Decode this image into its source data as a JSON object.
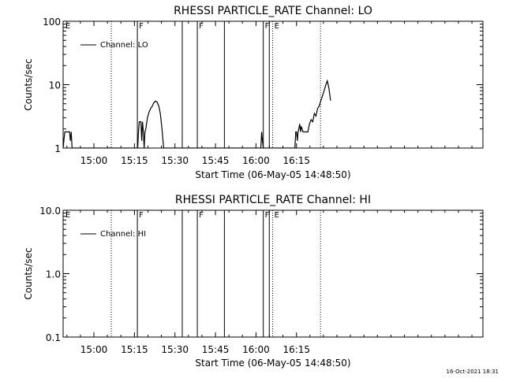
{
  "chart_data": [
    {
      "type": "line",
      "title": "RHESSI PARTICLE_RATE Channel: LO",
      "xlabel": "Start Time (06-May-05 14:48:50)",
      "ylabel": "Counts/sec",
      "y_scale": "log",
      "ylim": [
        1,
        100
      ],
      "xlim_minutes": [
        14.81,
        17.4
      ],
      "x_tick_labels": [
        "15:00",
        "15:15",
        "15:30",
        "15:45",
        "16:00",
        "16:15"
      ],
      "x_tick_minutes": [
        15,
        15.25,
        15.5,
        15.75,
        16,
        16.25
      ],
      "y_tick_labels": [
        "1",
        "10",
        "100"
      ],
      "y_tick_values": [
        1,
        10,
        100
      ],
      "grid": false,
      "legend_position": "top-left",
      "series": [
        {
          "name": "Channel: LO",
          "x_minutes": [
            14.81,
            14.82,
            14.85,
            14.855,
            14.86,
            14.865,
            15.27,
            15.275,
            15.28,
            15.29,
            15.295,
            15.3,
            15.305,
            15.31,
            15.315,
            15.32,
            15.33,
            15.34,
            15.35,
            15.36,
            15.37,
            15.38,
            15.39,
            15.4,
            15.41,
            15.42,
            15.43,
            16.03,
            16.035,
            16.04,
            16.045,
            16.24,
            16.245,
            16.25,
            16.255,
            16.26,
            16.27,
            16.275,
            16.28,
            16.29,
            16.3,
            16.31,
            16.32,
            16.33,
            16.34,
            16.35,
            16.36,
            16.37,
            16.38,
            16.39,
            16.4,
            16.41,
            16.42,
            16.43,
            16.44,
            16.45,
            16.46
          ],
          "y": [
            1,
            1.8,
            1.8,
            1.3,
            1.8,
            1,
            1,
            1.8,
            2.6,
            2.6,
            1.3,
            2.6,
            1.8,
            1,
            1.8,
            2,
            3,
            3.7,
            4.2,
            4.6,
            5.2,
            5.5,
            5.3,
            4.6,
            3.5,
            2,
            1,
            1,
            1.8,
            1.3,
            1,
            1,
            1.8,
            1.8,
            1.3,
            1.8,
            2.4,
            1.8,
            2.2,
            1.8,
            1.8,
            1.8,
            1.8,
            2.4,
            2.8,
            2.6,
            3.5,
            3.2,
            4.2,
            4.6,
            5.6,
            6.6,
            8,
            9.8,
            11.5,
            8.7,
            5.6
          ]
        }
      ],
      "annotations": [
        {
          "label": "E",
          "x_minutes": 14.815,
          "line": "none"
        },
        {
          "label": "",
          "x_minutes": 15.107,
          "line": "dotted"
        },
        {
          "label": "F",
          "x_minutes": 15.268,
          "line": "solid"
        },
        {
          "label": "",
          "x_minutes": 15.545,
          "line": "solid"
        },
        {
          "label": "F",
          "x_minutes": 15.638,
          "line": "solid"
        },
        {
          "label": "",
          "x_minutes": 15.805,
          "line": "solid"
        },
        {
          "label": "F",
          "x_minutes": 16.045,
          "line": "solid"
        },
        {
          "label": "",
          "x_minutes": 16.082,
          "line": "solid"
        },
        {
          "label": "E",
          "x_minutes": 16.103,
          "line": "dotted"
        },
        {
          "label": "",
          "x_minutes": 16.398,
          "line": "dotted"
        }
      ]
    },
    {
      "type": "line",
      "title": "RHESSI PARTICLE_RATE Channel: HI",
      "xlabel": "Start Time (06-May-05 14:48:50)",
      "ylabel": "Counts/sec",
      "y_scale": "log",
      "ylim": [
        0.1,
        10
      ],
      "xlim_minutes": [
        14.81,
        17.4
      ],
      "x_tick_labels": [
        "15:00",
        "15:15",
        "15:30",
        "15:45",
        "16:00",
        "16:15"
      ],
      "x_tick_minutes": [
        15,
        15.25,
        15.5,
        15.75,
        16,
        16.25
      ],
      "y_tick_labels": [
        "0.1",
        "1.0",
        "10.0"
      ],
      "y_tick_values": [
        0.1,
        1,
        10
      ],
      "grid": false,
      "legend_position": "top-left",
      "series": [
        {
          "name": "Channel: HI",
          "x_minutes": [],
          "y": []
        }
      ],
      "annotations": [
        {
          "label": "E",
          "x_minutes": 14.815,
          "line": "none"
        },
        {
          "label": "",
          "x_minutes": 15.107,
          "line": "dotted"
        },
        {
          "label": "F",
          "x_minutes": 15.268,
          "line": "solid"
        },
        {
          "label": "",
          "x_minutes": 15.545,
          "line": "solid"
        },
        {
          "label": "F",
          "x_minutes": 15.638,
          "line": "solid"
        },
        {
          "label": "",
          "x_minutes": 15.805,
          "line": "solid"
        },
        {
          "label": "F",
          "x_minutes": 16.045,
          "line": "solid"
        },
        {
          "label": "",
          "x_minutes": 16.082,
          "line": "solid"
        },
        {
          "label": "E",
          "x_minutes": 16.103,
          "line": "dotted"
        },
        {
          "label": "",
          "x_minutes": 16.398,
          "line": "dotted"
        }
      ]
    }
  ],
  "footer": {
    "timestamp": "16-Oct-2021 18:31"
  },
  "colors": {
    "axes": "#000000",
    "line": "#000000",
    "background": "#ffffff"
  }
}
